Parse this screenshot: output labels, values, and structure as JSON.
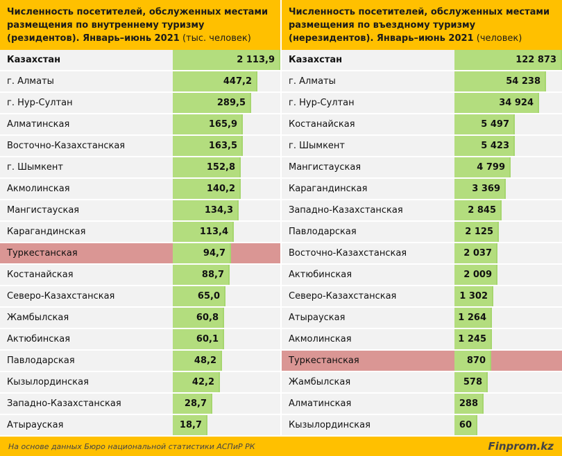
{
  "chart_data": [
    {
      "type": "bar",
      "orientation": "horizontal",
      "title_bold": "Численность посетителей, обслуженных местами размещения по внутреннему туризму (резидентов). Январь–июнь 2021",
      "title_unit": "(тыс. человек)",
      "highlight": "Туркестанская",
      "categories": [
        "Казахстан",
        "г. Алматы",
        "г. Нур-Султан",
        "Алматинская",
        "Восточно-Казахстанская",
        "г. Шымкент",
        "Акмолинская",
        "Мангистауская",
        "Карагандинская",
        "Туркестанская",
        "Костанайская",
        "Северо-Казахстанская",
        "Жамбылская",
        "Актюбинская",
        "Павлодарская",
        "Кызылординская",
        "Западно-Казахстанская",
        "Атырауская"
      ],
      "labels": [
        "2 113,9",
        "447,2",
        "289,5",
        "165,9",
        "163,5",
        "152,8",
        "140,2",
        "134,3",
        "113,4",
        "94,7",
        "88,7",
        "65,0",
        "60,8",
        "60,1",
        "48,2",
        "42,2",
        "28,7",
        "18,7"
      ],
      "values": [
        2113.9,
        447.2,
        289.5,
        165.9,
        163.5,
        152.8,
        140.2,
        134.3,
        113.4,
        94.7,
        88.7,
        65.0,
        60.8,
        60.1,
        48.2,
        42.2,
        28.7,
        18.7
      ],
      "bar_fill": [
        1,
        0.79,
        0.73,
        0.65,
        0.65,
        0.63,
        0.63,
        0.61,
        0.57,
        0.54,
        0.53,
        0.49,
        0.48,
        0.48,
        0.46,
        0.44,
        0.37,
        0.32
      ]
    },
    {
      "type": "bar",
      "orientation": "horizontal",
      "title_bold": "Численность посетителей, обслуженных местами размещения по въездному туризму (нерезидентов). Январь–июнь 2021",
      "title_unit": "(человек)",
      "highlight": "Туркестанская",
      "categories": [
        "Казахстан",
        "г. Алматы",
        "г. Нур-Султан",
        "Костанайская",
        "г. Шымкент",
        "Мангистауская",
        "Карагандинская",
        "Западно-Казахстанская",
        "Павлодарская",
        "Восточно-Казахстанская",
        "Актюбинская",
        "Северо-Казахстанская",
        "Атырауская",
        "Акмолинская",
        "Туркестанская",
        "Жамбылская",
        "Алматинская",
        "Кызылординская"
      ],
      "labels": [
        "122 873",
        "54 238",
        "34 924",
        "5 497",
        "5 423",
        "4 799",
        "3 369",
        "2 845",
        "2 125",
        "2 037",
        "2 009",
        "1 302",
        "1 264",
        "1 245",
        "870",
        "578",
        "288",
        "60"
      ],
      "values": [
        122873,
        54238,
        34924,
        5497,
        5423,
        4799,
        3369,
        2845,
        2125,
        2037,
        2009,
        1302,
        1264,
        1245,
        870,
        578,
        288,
        60
      ],
      "bar_fill": [
        1,
        0.85,
        0.79,
        0.56,
        0.56,
        0.52,
        0.48,
        0.44,
        0.41,
        0.4,
        0.4,
        0.36,
        0.35,
        0.35,
        0.34,
        0.31,
        0.27,
        0.21
      ]
    }
  ],
  "footer": {
    "source": "На основе данных Бюро национальной статистики АСПиР РК",
    "brand": "Finprom.kz"
  }
}
